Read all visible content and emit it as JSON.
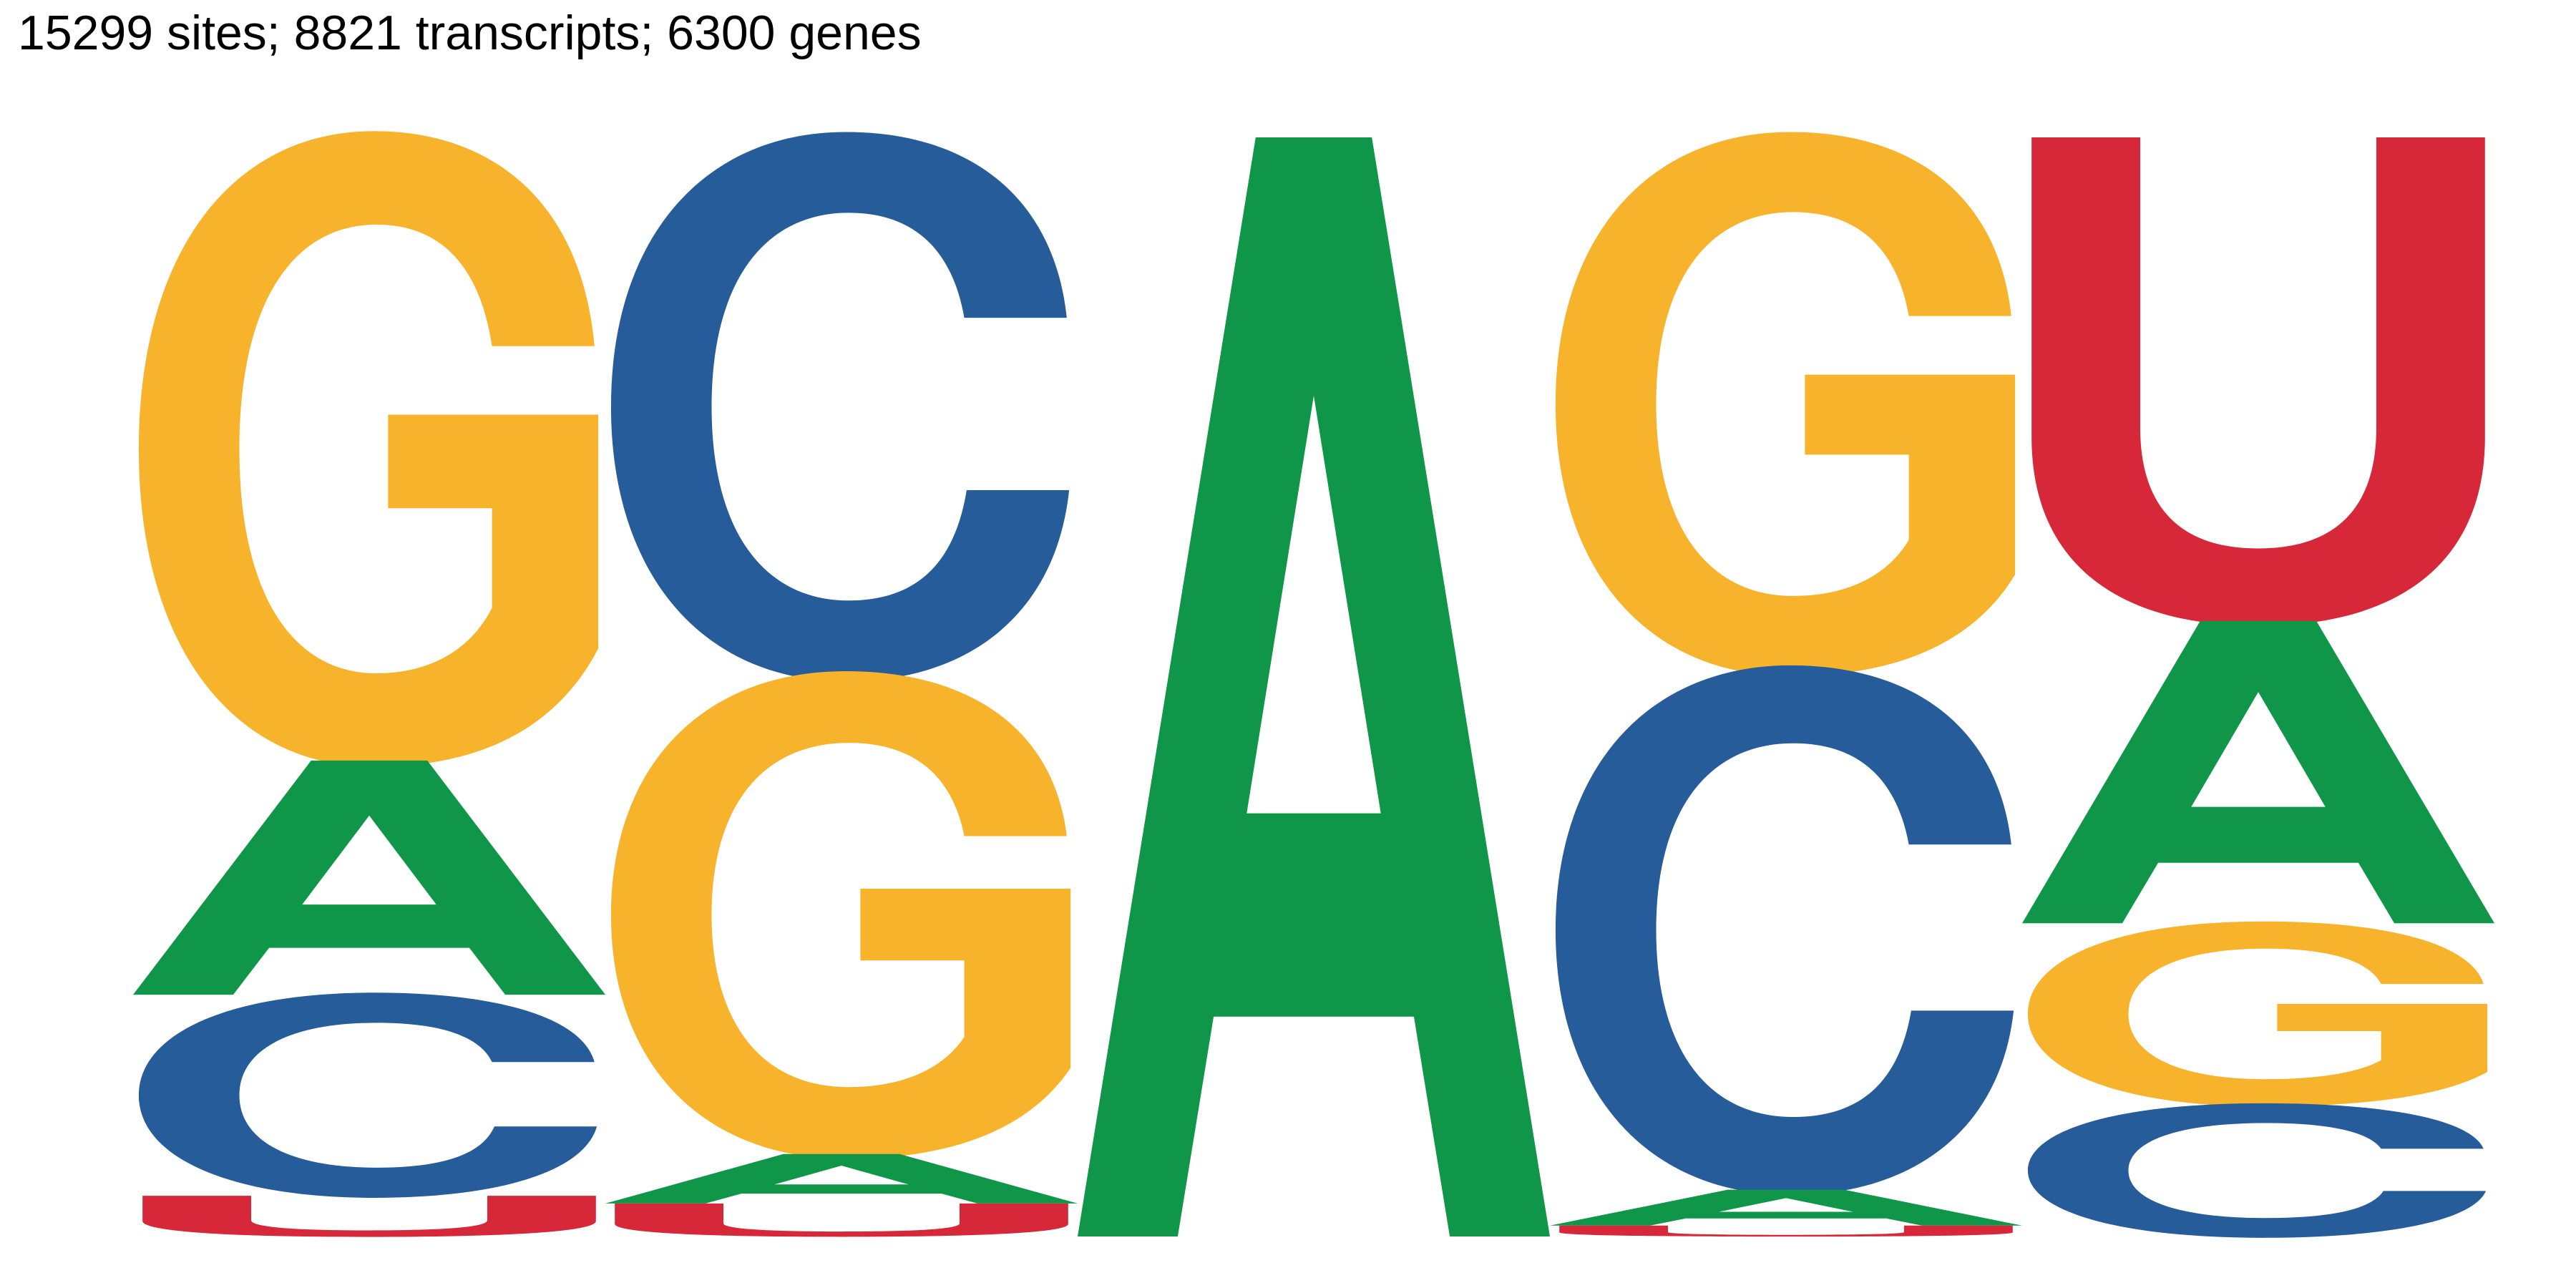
{
  "title": "15299 sites; 8821 transcripts; 6300 genes",
  "chart_data": {
    "type": "sequence-logo",
    "title": "15299 sites; 8821 transcripts; 6300 genes",
    "positions": [
      {
        "letters": [
          {
            "base": "G",
            "value": 0.567
          },
          {
            "base": "A",
            "value": 0.213
          },
          {
            "base": "C",
            "value": 0.183
          },
          {
            "base": "U",
            "value": 0.037
          }
        ]
      },
      {
        "letters": [
          {
            "base": "C",
            "value": 0.49
          },
          {
            "base": "G",
            "value": 0.435
          },
          {
            "base": "A",
            "value": 0.045
          },
          {
            "base": "U",
            "value": 0.03
          }
        ]
      },
      {
        "letters": [
          {
            "base": "A",
            "value": 1.0
          }
        ]
      },
      {
        "letters": [
          {
            "base": "G",
            "value": 0.49
          },
          {
            "base": "C",
            "value": 0.477
          },
          {
            "base": "A",
            "value": 0.033
          },
          {
            "base": "U",
            "value": 0.01
          }
        ]
      },
      {
        "letters": [
          {
            "base": "U",
            "value": 0.44
          },
          {
            "base": "A",
            "value": 0.275
          },
          {
            "base": "G",
            "value": 0.165
          },
          {
            "base": "C",
            "value": 0.12
          }
        ]
      }
    ],
    "colors": {
      "A": "#109648",
      "C": "#255c99",
      "G": "#f7b32b",
      "U": "#d62839"
    }
  }
}
